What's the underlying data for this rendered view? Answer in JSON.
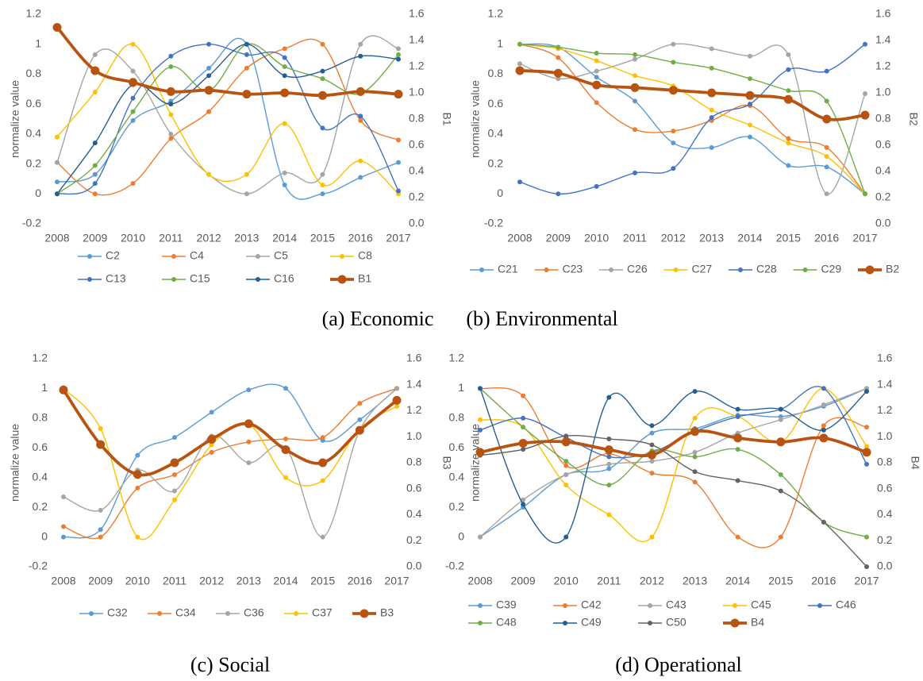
{
  "chart_data": [
    {
      "type": "line",
      "caption": "(a) Economic",
      "y_label": "normalize value",
      "y2_label": "B1",
      "categories": [
        "2008",
        "2009",
        "2010",
        "2011",
        "2012",
        "2013",
        "2014",
        "2015",
        "2016",
        "2017"
      ],
      "ylim": [
        -0.2,
        1.2
      ],
      "yticks": [
        -0.2,
        0,
        0.2,
        0.4,
        0.6,
        0.8,
        1,
        1.2
      ],
      "y2lim": [
        0,
        1.6
      ],
      "y2ticks": [
        {
          "value": 0,
          "label": "0.0"
        },
        0.2,
        0.4,
        0.6,
        0.8,
        {
          "value": 1,
          "label": "1.0"
        },
        1.2,
        1.4,
        1.6
      ],
      "series": [
        {
          "name": "C2",
          "color": "#5B9BD5",
          "values": [
            0.08,
            0.13,
            0.49,
            0.62,
            0.84,
            1.0,
            0.06,
            0.0,
            0.11,
            0.21
          ]
        },
        {
          "name": "C4",
          "color": "#ED7D31",
          "values": [
            0.21,
            0.0,
            0.07,
            0.37,
            0.55,
            0.84,
            0.97,
            1.0,
            0.49,
            0.36
          ]
        },
        {
          "name": "C5",
          "color": "#A5A5A5",
          "values": [
            0.21,
            0.93,
            0.82,
            0.4,
            0.13,
            0.0,
            0.14,
            0.13,
            1.0,
            0.97
          ]
        },
        {
          "name": "C8",
          "color": "#FFC000",
          "values": [
            0.38,
            0.68,
            1.0,
            0.53,
            0.13,
            0.13,
            0.47,
            0.06,
            0.22,
            0.0
          ]
        },
        {
          "name": "C13",
          "color": "#4472C4",
          "values": [
            0.0,
            0.07,
            0.64,
            0.92,
            1.0,
            0.93,
            0.91,
            0.44,
            0.52,
            0.02
          ]
        },
        {
          "name": "C15",
          "color": "#70AD47",
          "values": [
            0.0,
            0.19,
            0.55,
            0.85,
            0.69,
            1.0,
            0.85,
            0.77,
            0.67,
            0.93
          ]
        },
        {
          "name": "C16",
          "color": "#255E91",
          "values": [
            0.0,
            0.34,
            0.73,
            0.6,
            0.79,
            1.0,
            0.79,
            0.82,
            0.92,
            0.9
          ]
        },
        {
          "name": "B1",
          "color": "#B85412",
          "axis": "y2",
          "values": [
            1.5,
            1.17,
            1.08,
            1.01,
            1.02,
            0.99,
            1.0,
            0.98,
            1.01,
            0.99
          ]
        }
      ]
    },
    {
      "type": "line",
      "caption": "(b) Environmental",
      "y_label": "normalize value",
      "y2_label": "B2",
      "categories": [
        "2008",
        "2009",
        "2010",
        "2011",
        "2012",
        "2013",
        "2014",
        "2015",
        "2016",
        "2017"
      ],
      "ylim": [
        -0.2,
        1.2
      ],
      "yticks": [
        -0.2,
        0,
        0.2,
        0.4,
        0.6,
        0.8,
        1,
        1.2
      ],
      "y2lim": [
        0,
        1.6
      ],
      "y2ticks": [
        {
          "value": 0,
          "label": "0.0"
        },
        0.2,
        0.4,
        0.6,
        0.8,
        {
          "value": 1,
          "label": "1.0"
        },
        1.2,
        1.4,
        1.6
      ],
      "series": [
        {
          "name": "C21",
          "color": "#5B9BD5",
          "values": [
            1.0,
            0.98,
            0.78,
            0.62,
            0.34,
            0.31,
            0.38,
            0.19,
            0.18,
            0.0
          ]
        },
        {
          "name": "C23",
          "color": "#ED7D31",
          "values": [
            1.0,
            0.91,
            0.61,
            0.43,
            0.42,
            0.49,
            0.59,
            0.37,
            0.31,
            0.0
          ]
        },
        {
          "name": "C26",
          "color": "#A5A5A5",
          "values": [
            0.87,
            0.77,
            0.82,
            0.9,
            1.0,
            0.97,
            0.92,
            0.93,
            0.0,
            0.67
          ]
        },
        {
          "name": "C27",
          "color": "#FFC000",
          "values": [
            1.0,
            0.97,
            0.89,
            0.79,
            0.72,
            0.56,
            0.46,
            0.34,
            0.25,
            0.0
          ]
        },
        {
          "name": "C28",
          "color": "#4472C4",
          "values": [
            0.08,
            0.0,
            0.05,
            0.14,
            0.17,
            0.51,
            0.6,
            0.83,
            0.82,
            1.0
          ]
        },
        {
          "name": "C29",
          "color": "#70AD47",
          "values": [
            1.0,
            0.98,
            0.94,
            0.93,
            0.88,
            0.84,
            0.77,
            0.69,
            0.62,
            0.0
          ]
        },
        {
          "name": "B2",
          "color": "#B85412",
          "axis": "y2",
          "values": [
            1.17,
            1.15,
            1.06,
            1.04,
            1.02,
            1.0,
            0.98,
            0.95,
            0.8,
            0.83
          ]
        }
      ]
    },
    {
      "type": "line",
      "caption": "(c) Social",
      "y_label": "normalize value",
      "y2_label": "B3",
      "categories": [
        "2008",
        "2009",
        "2010",
        "2011",
        "2012",
        "2013",
        "2014",
        "2015",
        "2016",
        "2017"
      ],
      "ylim": [
        -0.2,
        1.2
      ],
      "yticks": [
        -0.2,
        0,
        0.2,
        0.4,
        0.6,
        0.8,
        1,
        1.2
      ],
      "y2lim": [
        0,
        1.6
      ],
      "y2ticks": [
        {
          "value": 0,
          "label": "0.0"
        },
        0.2,
        0.4,
        0.6,
        0.8,
        {
          "value": 1,
          "label": "1.0"
        },
        1.2,
        1.4,
        1.6
      ],
      "series": [
        {
          "name": "C32",
          "color": "#5B9BD5",
          "values": [
            0.0,
            0.05,
            0.55,
            0.67,
            0.84,
            0.99,
            1.0,
            0.65,
            0.79,
            1.0
          ]
        },
        {
          "name": "C34",
          "color": "#ED7D31",
          "values": [
            0.07,
            0.0,
            0.33,
            0.42,
            0.57,
            0.64,
            0.66,
            0.67,
            0.9,
            1.0
          ]
        },
        {
          "name": "C36",
          "color": "#A5A5A5",
          "values": [
            0.27,
            0.18,
            0.45,
            0.31,
            0.68,
            0.5,
            0.6,
            0.0,
            0.72,
            1.0
          ]
        },
        {
          "name": "C37",
          "color": "#FFC000",
          "values": [
            1.0,
            0.73,
            0.0,
            0.25,
            0.62,
            0.76,
            0.4,
            0.38,
            0.73,
            0.88
          ]
        },
        {
          "name": "B3",
          "color": "#B85412",
          "axis": "y2",
          "values": [
            1.36,
            0.94,
            0.71,
            0.8,
            0.98,
            1.1,
            0.9,
            0.8,
            1.05,
            1.28
          ]
        }
      ]
    },
    {
      "type": "line",
      "caption": "(d) Operational",
      "y_label": "normalize value",
      "y2_label": "B4",
      "categories": [
        "2008",
        "2009",
        "2010",
        "2011",
        "2012",
        "2013",
        "2014",
        "2015",
        "2016",
        "2017"
      ],
      "ylim": [
        -0.2,
        1.2
      ],
      "yticks": [
        -0.2,
        0,
        0.2,
        0.4,
        0.6,
        0.8,
        1,
        1.2
      ],
      "y2lim": [
        0,
        1.6
      ],
      "y2ticks": [
        {
          "value": 0,
          "label": "0.0"
        },
        0.2,
        0.4,
        0.6,
        0.8,
        {
          "value": 1,
          "label": "1.0"
        },
        1.2,
        1.4,
        1.6
      ],
      "series": [
        {
          "name": "C39",
          "color": "#5B9BD5",
          "values": [
            0.0,
            0.2,
            0.42,
            0.46,
            0.7,
            0.73,
            0.82,
            0.81,
            0.88,
            1.0
          ]
        },
        {
          "name": "C42",
          "color": "#ED7D31",
          "values": [
            1.0,
            0.95,
            0.48,
            0.56,
            0.43,
            0.37,
            0.0,
            0.0,
            0.75,
            0.74
          ]
        },
        {
          "name": "C43",
          "color": "#A5A5A5",
          "values": [
            0.0,
            0.25,
            0.42,
            0.49,
            0.51,
            0.57,
            0.7,
            0.79,
            0.89,
            1.0
          ]
        },
        {
          "name": "C45",
          "color": "#FFC000",
          "values": [
            0.79,
            0.74,
            0.35,
            0.15,
            0.0,
            0.8,
            0.81,
            0.64,
            1.0,
            0.61
          ]
        },
        {
          "name": "C46",
          "color": "#4472C4",
          "values": [
            0.72,
            0.8,
            0.67,
            0.54,
            0.57,
            0.71,
            0.81,
            0.86,
            1.0,
            0.49
          ]
        },
        {
          "name": "C48",
          "color": "#70AD47",
          "values": [
            1.0,
            0.74,
            0.51,
            0.35,
            0.58,
            0.54,
            0.59,
            0.42,
            0.1,
            0.0
          ]
        },
        {
          "name": "C49",
          "color": "#255E91",
          "values": [
            1.0,
            0.22,
            0.0,
            0.94,
            0.75,
            0.98,
            0.86,
            0.86,
            0.72,
            0.98
          ]
        },
        {
          "name": "C50",
          "color": "#636363",
          "values": [
            0.55,
            0.59,
            0.68,
            0.66,
            0.62,
            0.44,
            0.38,
            0.31,
            0.1,
            -0.2
          ]
        },
        {
          "name": "B4",
          "color": "#B85412",
          "axis": "y2",
          "values": [
            0.88,
            0.95,
            0.96,
            0.9,
            0.86,
            1.04,
            0.99,
            0.96,
            0.99,
            0.88
          ]
        }
      ]
    }
  ]
}
